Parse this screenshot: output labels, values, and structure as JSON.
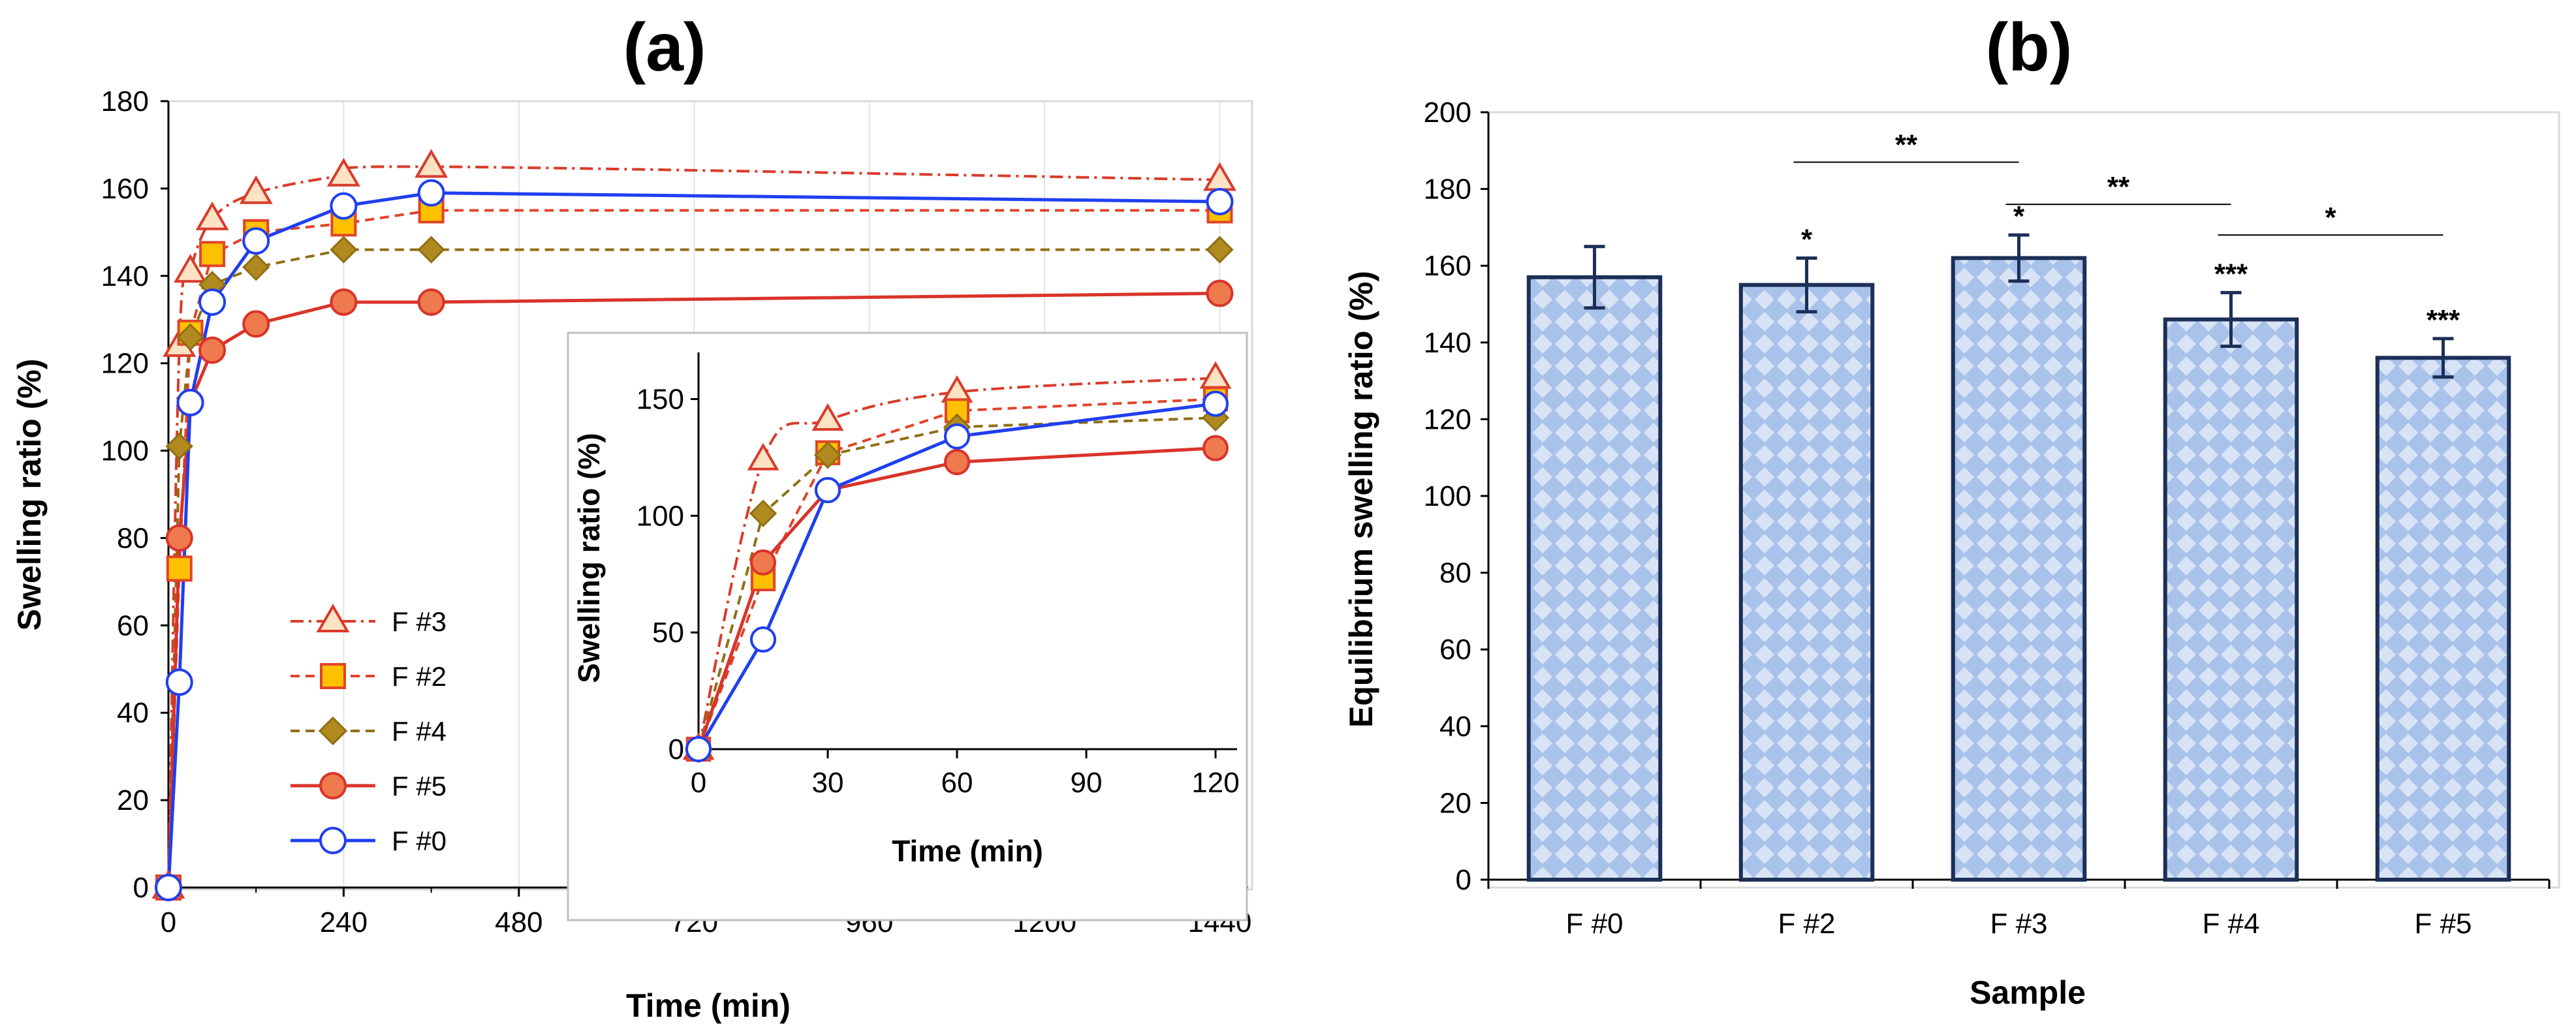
{
  "chart_data": [
    {
      "panel": "(a)",
      "type": "line",
      "xlabel": "Time (min)",
      "ylabel": "Swelling ratio (%)",
      "xlim": [
        0,
        1470
      ],
      "ylim": [
        0,
        180
      ],
      "xticks": [
        0,
        240,
        480,
        720,
        960,
        1200,
        1440
      ],
      "yticks": [
        0,
        20,
        40,
        60,
        80,
        100,
        120,
        140,
        160,
        180
      ],
      "x": [
        0,
        15,
        30,
        60,
        120,
        240,
        360,
        1440
      ],
      "legend_position": "lower-left",
      "series": [
        {
          "name": "F #3",
          "marker": "triangle",
          "line": "dashdot",
          "color": "#d93b2b",
          "fill": "#fde3c4",
          "values": [
            0,
            124,
            141,
            153,
            159,
            163,
            165,
            162
          ],
          "smooth": true
        },
        {
          "name": "F #2",
          "marker": "square",
          "line": "dashed",
          "color": "#e0442a",
          "fill": "#ffc000",
          "values": [
            0,
            73,
            127,
            145,
            150,
            152,
            155,
            155
          ],
          "smooth": false
        },
        {
          "name": "F #4",
          "marker": "diamond",
          "line": "dashed",
          "color": "#8f6f14",
          "fill": "#b08a1e",
          "values": [
            0,
            101,
            126,
            138,
            142,
            146,
            146,
            146
          ],
          "smooth": false
        },
        {
          "name": "F #5",
          "marker": "circle",
          "line": "solid",
          "color": "#d9342a",
          "fill": "#ee7a4d",
          "values": [
            0,
            80,
            111,
            123,
            129,
            134,
            134,
            136
          ],
          "smooth": false
        },
        {
          "name": "F #0",
          "marker": "circle-open",
          "line": "solid",
          "color": "#1f3ff0",
          "fill": "#ffffff",
          "values": [
            0,
            47,
            111,
            134,
            148,
            156,
            159,
            157
          ],
          "smooth": false
        }
      ],
      "inset": {
        "xlabel": "Time (min)",
        "ylabel": "Swelling ratio (%)",
        "xlim": [
          0,
          125
        ],
        "ylim": [
          0,
          170
        ],
        "xticks": [
          0,
          30,
          60,
          90,
          120
        ],
        "yticks": [
          0,
          50,
          100,
          150
        ],
        "x": [
          0,
          15,
          30,
          60,
          120
        ]
      }
    },
    {
      "panel": "(b)",
      "type": "bar",
      "xlabel": "Sample",
      "ylabel": "Equilibrium swelling ratio (%)",
      "ylim": [
        0,
        200
      ],
      "yticks": [
        0,
        20,
        40,
        60,
        80,
        100,
        120,
        140,
        160,
        180,
        200
      ],
      "categories": [
        "F #0",
        "F #2",
        "F #3",
        "F #4",
        "F #5"
      ],
      "values": [
        157,
        155,
        162,
        146,
        136
      ],
      "errors": [
        8,
        7,
        6,
        7,
        5
      ],
      "bar_color": "#a9c2ea",
      "bar_pattern_color": "#ffffff",
      "bar_edge": "#1b2f57",
      "significance_marks": [
        "",
        "*",
        "*",
        "***",
        "***"
      ],
      "brackets": [
        {
          "from": 1,
          "to": 2,
          "label": "**",
          "y": 187
        },
        {
          "from": 2,
          "to": 3,
          "label": "**",
          "y": 176
        },
        {
          "from": 3,
          "to": 4,
          "label": "*",
          "y": 168
        }
      ]
    }
  ]
}
